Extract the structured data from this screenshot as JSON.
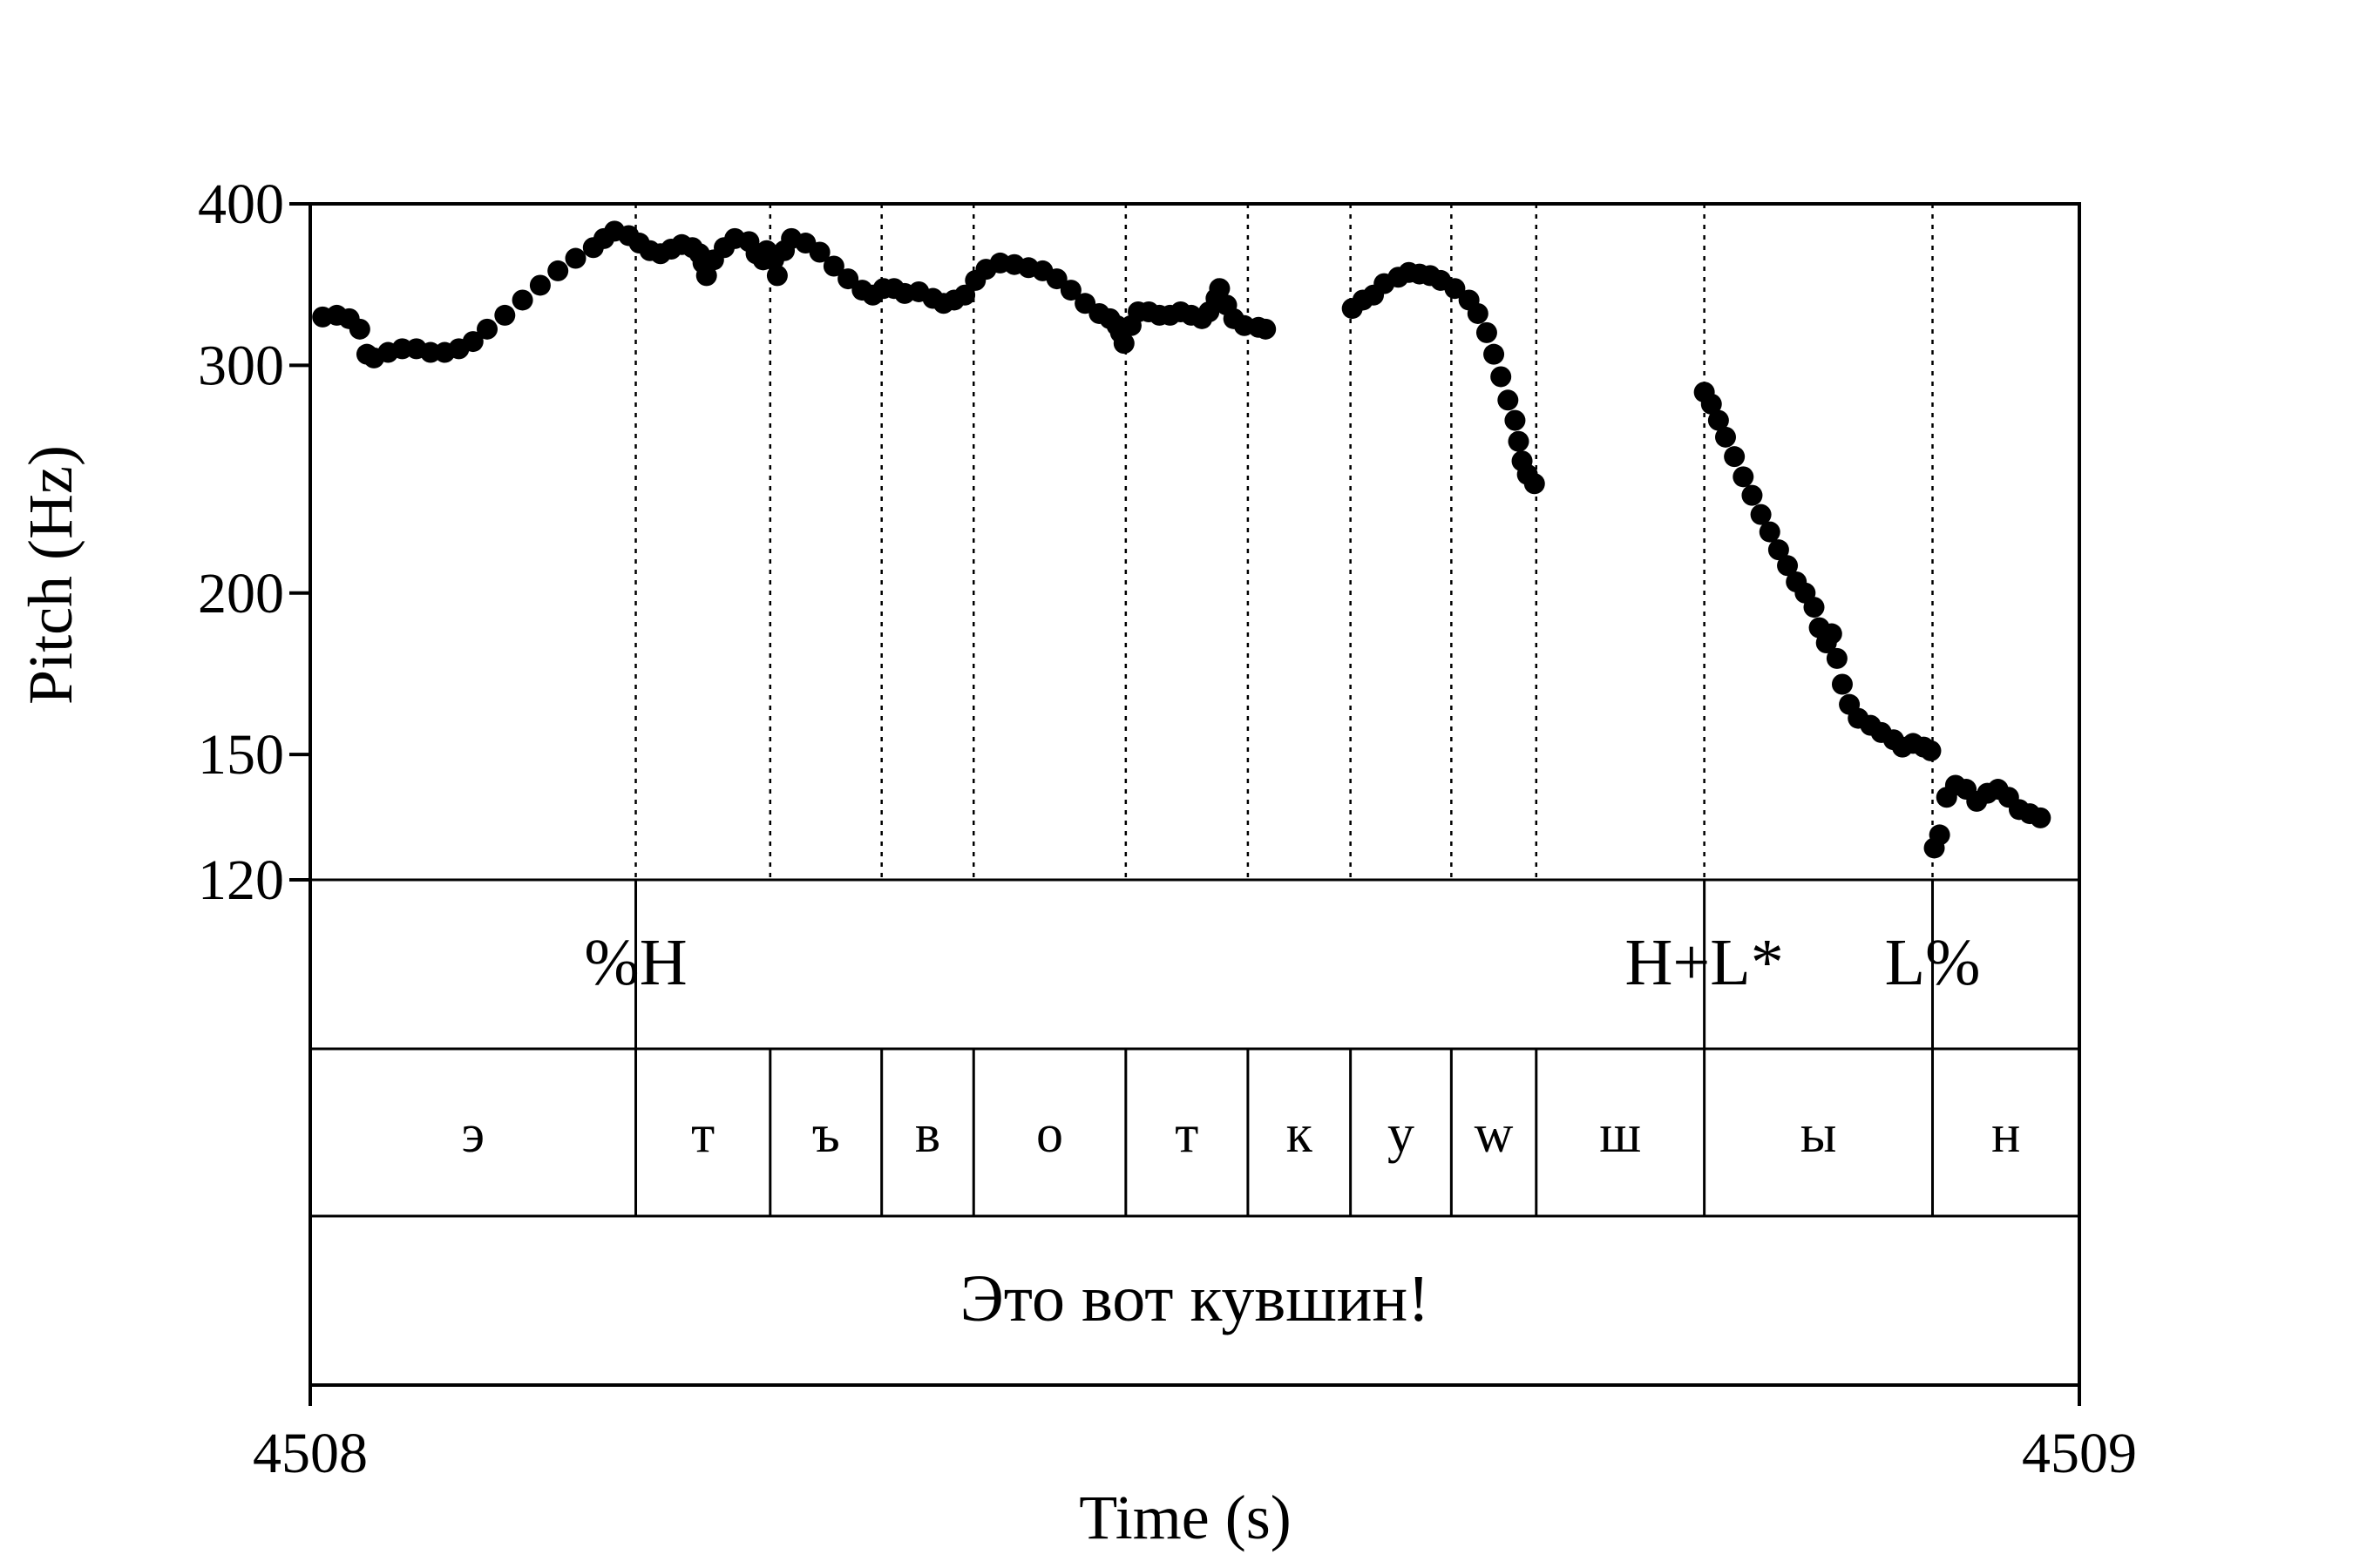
{
  "chart_data": {
    "type": "scatter",
    "xlabel": "Time (s)",
    "ylabel": "Pitch (Hz)",
    "xlim": [
      4508,
      4509
    ],
    "ylim": [
      120,
      400
    ],
    "y_scale": "log",
    "xticks": [
      "4508",
      "4509"
    ],
    "yticks": [
      {
        "value": 400,
        "label": "400"
      },
      {
        "value": 300,
        "label": "300"
      },
      {
        "value": 200,
        "label": "200"
      },
      {
        "value": 150,
        "label": "150"
      },
      {
        "value": 120,
        "label": "120"
      }
    ],
    "boundaries": [
      4508.184,
      4508.26,
      4508.323,
      4508.375,
      4508.461,
      4508.53,
      4508.588,
      4508.645,
      4508.693,
      4508.788,
      4508.917
    ],
    "tone_tier": [
      {
        "label": "%H",
        "t": 4508.184
      },
      {
        "label": "H+L*",
        "t": 4508.788
      },
      {
        "label": "L%",
        "t": 4508.917
      }
    ],
    "phone_tier": [
      {
        "label": "э",
        "start": 4508.0,
        "end": 4508.184
      },
      {
        "label": "т",
        "start": 4508.184,
        "end": 4508.26
      },
      {
        "label": "ъ",
        "start": 4508.26,
        "end": 4508.323
      },
      {
        "label": "в",
        "start": 4508.323,
        "end": 4508.375
      },
      {
        "label": "о",
        "start": 4508.375,
        "end": 4508.461
      },
      {
        "label": "т",
        "start": 4508.461,
        "end": 4508.53
      },
      {
        "label": "к",
        "start": 4508.53,
        "end": 4508.588
      },
      {
        "label": "у",
        "start": 4508.588,
        "end": 4508.645
      },
      {
        "label": "w",
        "start": 4508.645,
        "end": 4508.693
      },
      {
        "label": "ш",
        "start": 4508.693,
        "end": 4508.788
      },
      {
        "label": "ы",
        "start": 4508.788,
        "end": 4508.917
      },
      {
        "label": "н",
        "start": 4508.917,
        "end": 4509.0
      }
    ],
    "sentence_tier": [
      {
        "label": "Это вот кувшин!",
        "start": 4508.0,
        "end": 4509.0
      }
    ],
    "series": [
      {
        "points": [
          [
            4508.007,
            327
          ],
          [
            4508.015,
            328
          ],
          [
            4508.022,
            326
          ],
          [
            4508.028,
            320
          ],
          [
            4508.032,
            306
          ],
          [
            4508.036,
            304
          ],
          [
            4508.044,
            307
          ],
          [
            4508.052,
            309
          ],
          [
            4508.06,
            309
          ],
          [
            4508.068,
            307
          ],
          [
            4508.076,
            307
          ],
          [
            4508.084,
            309
          ],
          [
            4508.092,
            313
          ],
          [
            4508.1,
            320
          ],
          [
            4508.11,
            328
          ],
          [
            4508.12,
            337
          ],
          [
            4508.13,
            346
          ],
          [
            4508.14,
            355
          ],
          [
            4508.15,
            363
          ],
          [
            4508.16,
            370
          ],
          [
            4508.166,
            376
          ],
          [
            4508.172,
            381
          ],
          [
            4508.18,
            378
          ],
          [
            4508.186,
            373
          ],
          [
            4508.192,
            368
          ],
          [
            4508.198,
            366
          ],
          [
            4508.204,
            369
          ],
          [
            4508.21,
            372
          ],
          [
            4508.216,
            370
          ],
          [
            4508.22,
            366
          ],
          [
            4508.222,
            360
          ],
          [
            4508.224,
            352
          ],
          [
            4508.228,
            362
          ],
          [
            4508.234,
            370
          ],
          [
            4508.24,
            376
          ],
          [
            4508.248,
            374
          ],
          [
            4508.252,
            366
          ],
          [
            4508.256,
            362
          ],
          [
            4508.258,
            368
          ],
          [
            4508.262,
            362
          ],
          [
            4508.264,
            352
          ],
          [
            4508.268,
            368
          ],
          [
            4508.272,
            376
          ],
          [
            4508.28,
            373
          ],
          [
            4508.288,
            367
          ],
          [
            4508.296,
            358
          ],
          [
            4508.304,
            350
          ],
          [
            4508.312,
            343
          ],
          [
            4508.318,
            340
          ],
          [
            4508.324,
            344
          ],
          [
            4508.33,
            344
          ],
          [
            4508.336,
            341
          ],
          [
            4508.344,
            342
          ],
          [
            4508.352,
            338
          ],
          [
            4508.358,
            335
          ],
          [
            4508.364,
            337
          ],
          [
            4508.37,
            340
          ],
          [
            4508.376,
            349
          ],
          [
            4508.382,
            356
          ],
          [
            4508.39,
            360
          ],
          [
            4508.398,
            359
          ],
          [
            4508.406,
            357
          ],
          [
            4508.414,
            355
          ],
          [
            4508.422,
            350
          ],
          [
            4508.43,
            343
          ],
          [
            4508.438,
            335
          ],
          [
            4508.446,
            329
          ],
          [
            4508.452,
            326
          ],
          [
            4508.456,
            322
          ],
          [
            4508.458,
            318
          ],
          [
            4508.46,
            312
          ],
          [
            4508.464,
            322
          ],
          [
            4508.468,
            330
          ],
          [
            4508.474,
            330
          ],
          [
            4508.48,
            328
          ],
          [
            4508.486,
            328
          ],
          [
            4508.492,
            330
          ],
          [
            4508.498,
            328
          ],
          [
            4508.504,
            326
          ],
          [
            4508.508,
            330
          ],
          [
            4508.512,
            338
          ],
          [
            4508.514,
            344
          ],
          [
            4508.518,
            334
          ],
          [
            4508.522,
            326
          ],
          [
            4508.528,
            322
          ],
          [
            4508.536,
            321
          ],
          [
            4508.54,
            320
          ],
          [
            4508.589,
            332
          ],
          [
            4508.595,
            337
          ],
          [
            4508.601,
            340
          ],
          [
            4508.607,
            347
          ],
          [
            4508.615,
            351
          ],
          [
            4508.621,
            354
          ],
          [
            4508.627,
            353
          ],
          [
            4508.633,
            352
          ],
          [
            4508.639,
            349
          ],
          [
            4508.647,
            344
          ],
          [
            4508.655,
            337
          ],
          [
            4508.66,
            329
          ],
          [
            4508.665,
            318
          ],
          [
            4508.669,
            306
          ],
          [
            4508.673,
            294
          ],
          [
            4508.677,
            282
          ],
          [
            4508.681,
            272
          ],
          [
            4508.683,
            262
          ],
          [
            4508.685,
            253
          ],
          [
            4508.688,
            247
          ],
          [
            4508.692,
            243
          ],
          [
            4508.788,
            286
          ],
          [
            4508.792,
            280
          ],
          [
            4508.796,
            272
          ],
          [
            4508.8,
            264
          ],
          [
            4508.805,
            255
          ],
          [
            4508.81,
            246
          ],
          [
            4508.815,
            238
          ],
          [
            4508.82,
            230
          ],
          [
            4508.825,
            223
          ],
          [
            4508.83,
            216
          ],
          [
            4508.835,
            210
          ],
          [
            4508.84,
            204
          ],
          [
            4508.845,
            200
          ],
          [
            4508.85,
            195
          ],
          [
            4508.853,
            188
          ],
          [
            4508.857,
            183
          ],
          [
            4508.86,
            186
          ],
          [
            4508.863,
            178
          ],
          [
            4508.866,
            170
          ],
          [
            4508.87,
            164
          ],
          [
            4508.875,
            160
          ],
          [
            4508.882,
            158
          ],
          [
            4508.888,
            156
          ],
          [
            4508.895,
            154
          ],
          [
            4508.9,
            152
          ],
          [
            4508.906,
            153
          ],
          [
            4508.912,
            152
          ],
          [
            4508.916,
            151
          ],
          [
            4508.918,
            127
          ],
          [
            4508.921,
            130
          ],
          [
            4508.925,
            139
          ],
          [
            4508.93,
            142
          ],
          [
            4508.936,
            141
          ],
          [
            4508.942,
            138
          ],
          [
            4508.948,
            140
          ],
          [
            4508.954,
            141
          ],
          [
            4508.96,
            139
          ],
          [
            4508.966,
            136
          ],
          [
            4508.972,
            135
          ],
          [
            4508.978,
            134
          ]
        ]
      }
    ]
  }
}
